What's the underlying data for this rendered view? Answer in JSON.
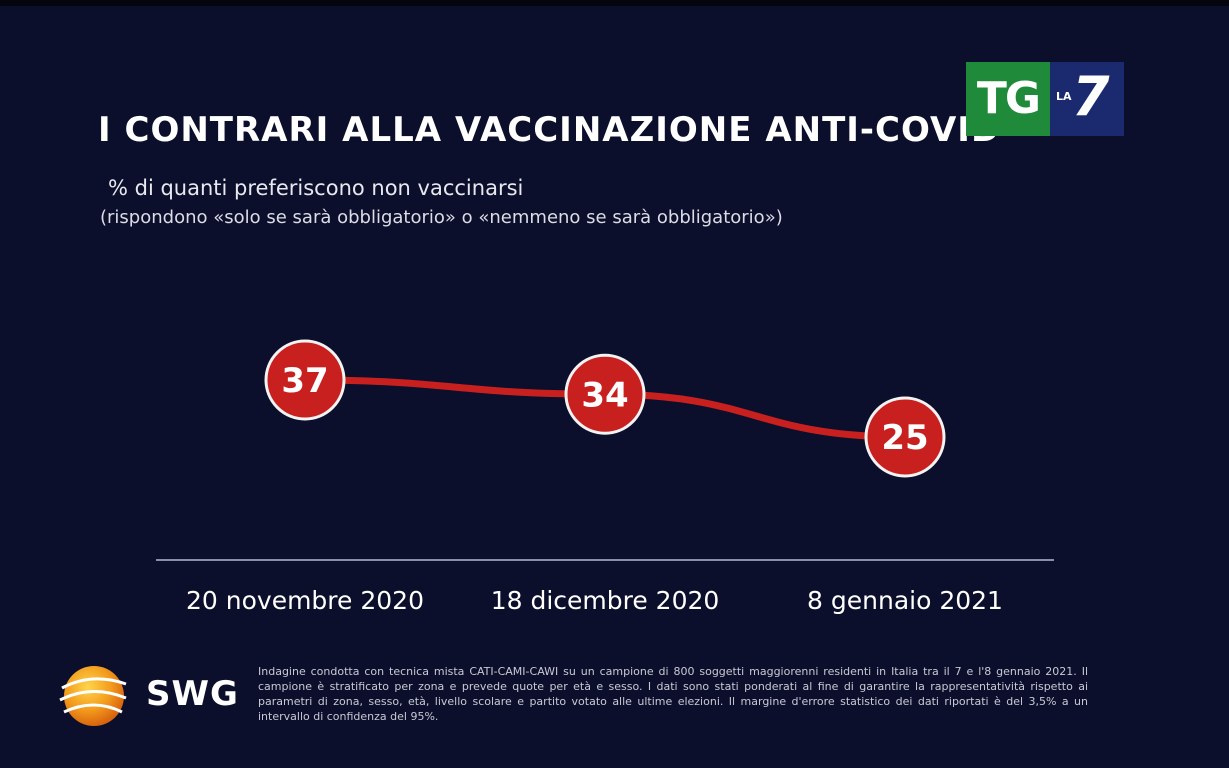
{
  "header": {
    "title": "I CONTRARI ALLA VACCINAZIONE ANTI-COVID",
    "subtitle": "% di quanti preferiscono non vaccinarsi",
    "subnote": "(rispondono «solo se sarà obbligatorio» o «nemmeno se sarà obbligatorio»)"
  },
  "broadcaster": {
    "tg": "TG",
    "la": "LA",
    "seven": "7"
  },
  "chart_data": {
    "type": "line",
    "title": "I CONTRARI ALLA VACCINAZIONE ANTI-COVID",
    "subtitle": "% di quanti preferiscono non vaccinarsi",
    "categories": [
      "20 novembre 2020",
      "18 dicembre 2020",
      "8 gennaio 2021"
    ],
    "series": [
      {
        "values": [
          37,
          34,
          25
        ],
        "color": "#c8201f"
      }
    ],
    "ylim": [
      0,
      45
    ],
    "grid": false,
    "legend": "none",
    "data_labels": [
      "37",
      "34",
      "25"
    ]
  },
  "source": {
    "brand": "SWG",
    "footnote": "Indagine condotta con tecnica mista CATI-CAMI-CAWI su un campione di 800 soggetti maggiorenni residenti in Italia tra il 7 e l'8 gennaio 2021. Il campione è stratificato per zona e prevede quote per età e sesso. I dati sono stati ponderati al fine di garantire la rappresentatività rispetto ai parametri di zona, sesso, età, livello scolare e partito votato alle ultime elezioni. Il margine d'errore statistico dei dati riportati è del 3,5% a un intervallo di confidenza del 95%."
  },
  "colors": {
    "background": "#0b0f2b",
    "accent": "#c8201f",
    "tg_green": "#1f8a3a",
    "la7_blue": "#1b2a6e"
  }
}
